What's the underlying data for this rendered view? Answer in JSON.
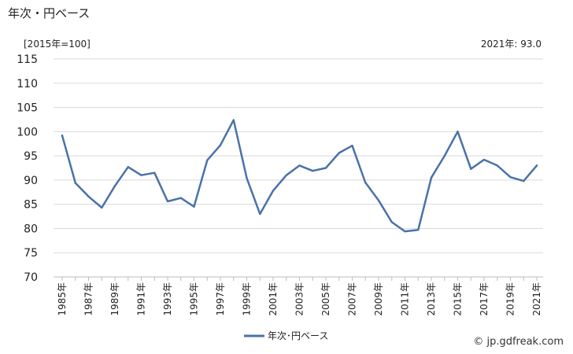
{
  "header": {
    "title": "年次・円ベース",
    "unit_label": "[2015年=100]",
    "latest_label": "2021年: 93.0",
    "credit": "© jp.gdfreak.com"
  },
  "chart_data": {
    "type": "line",
    "title": "年次・円ベース",
    "xlabel": "",
    "ylabel": "",
    "ylim": [
      70,
      115
    ],
    "yticks": [
      70,
      75,
      80,
      85,
      90,
      95,
      100,
      105,
      110,
      115
    ],
    "x": [
      1985,
      1986,
      1987,
      1988,
      1989,
      1990,
      1991,
      1992,
      1993,
      1994,
      1995,
      1996,
      1997,
      1998,
      1999,
      2000,
      2001,
      2002,
      2003,
      2004,
      2005,
      2006,
      2007,
      2008,
      2009,
      2010,
      2011,
      2012,
      2013,
      2014,
      2015,
      2016,
      2017,
      2018,
      2019,
      2020,
      2021
    ],
    "x_tick_labels": [
      "1985年",
      "1987年",
      "1989年",
      "1991年",
      "1993年",
      "1995年",
      "1997年",
      "1999年",
      "2001年",
      "2003年",
      "2005年",
      "2007年",
      "2009年",
      "2011年",
      "2013年",
      "2015年",
      "2017年",
      "2019年",
      "2021年"
    ],
    "series": [
      {
        "name": "年次･円ベース",
        "color": "#4a72a8",
        "values": [
          99.2,
          89.4,
          86.6,
          84.3,
          88.8,
          92.7,
          91.0,
          91.5,
          85.6,
          86.3,
          84.5,
          94.1,
          97.2,
          102.4,
          90.4,
          83.0,
          87.8,
          91.0,
          93.0,
          91.9,
          92.5,
          95.6,
          97.1,
          89.5,
          85.8,
          81.3,
          79.4,
          79.7,
          90.5,
          95.0,
          100.0,
          92.3,
          94.2,
          93.0,
          90.6,
          89.8,
          93.0
        ]
      }
    ],
    "grid": true,
    "legend_position": "bottom-center"
  }
}
